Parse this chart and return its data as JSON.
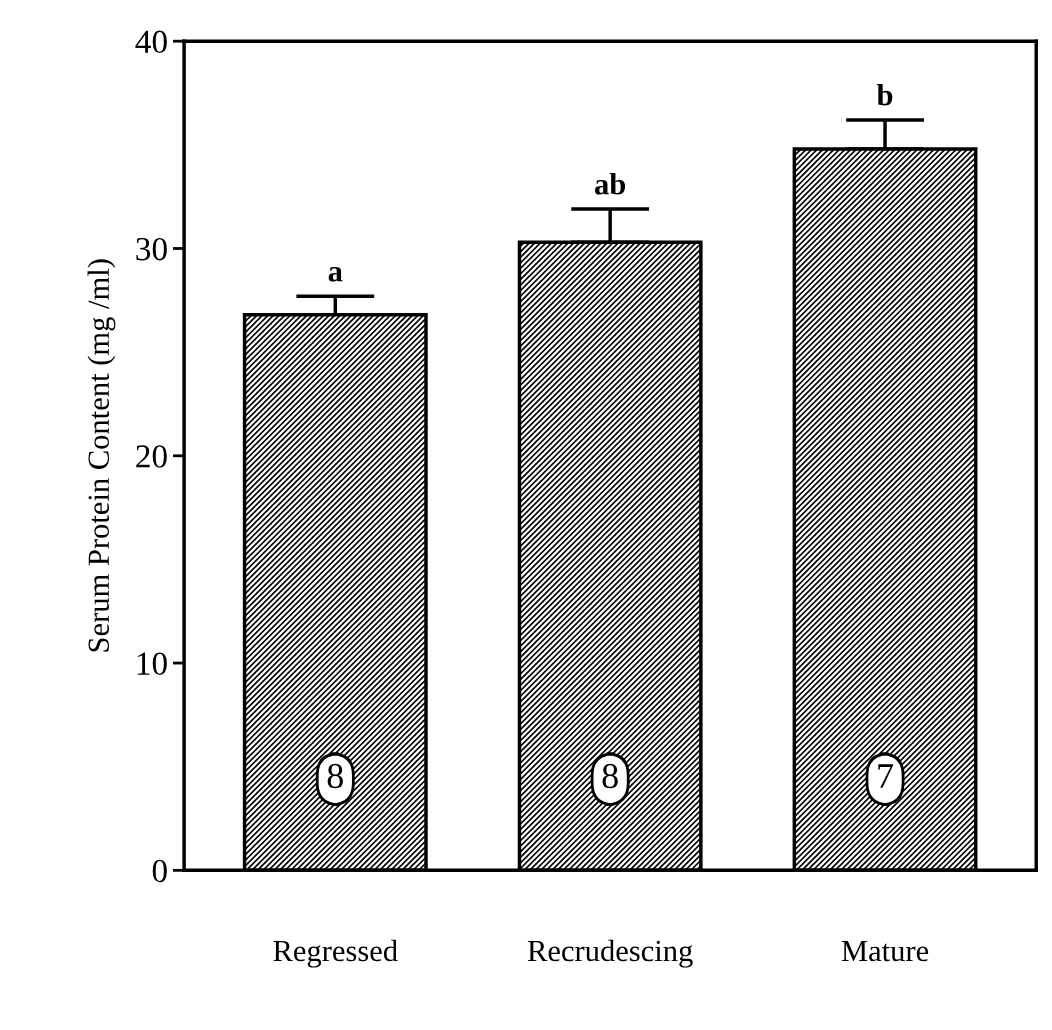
{
  "chart_data": {
    "type": "bar",
    "ylabel": "Serum Protein Content (mg /ml)",
    "categories": [
      "Regressed",
      "Recrudescing",
      "Mature"
    ],
    "values": [
      26.8,
      30.3,
      34.8
    ],
    "errors": [
      [
        26.8,
        27.7
      ],
      [
        30.3,
        31.9
      ],
      [
        34.8,
        36.2
      ]
    ],
    "color": "#000000",
    "ylim": [
      0,
      40
    ],
    "yticks": [
      0,
      10,
      20,
      30,
      40
    ],
    "grid": false,
    "legend": false,
    "annotations": [
      {
        "text": "a",
        "x": "Regressed",
        "y": 27.7
      },
      {
        "text": "ab",
        "x": "Recrudescing",
        "y": 31.9
      },
      {
        "text": "b",
        "x": "Mature",
        "y": 36.2
      },
      "8",
      "8",
      "7"
    ]
  }
}
